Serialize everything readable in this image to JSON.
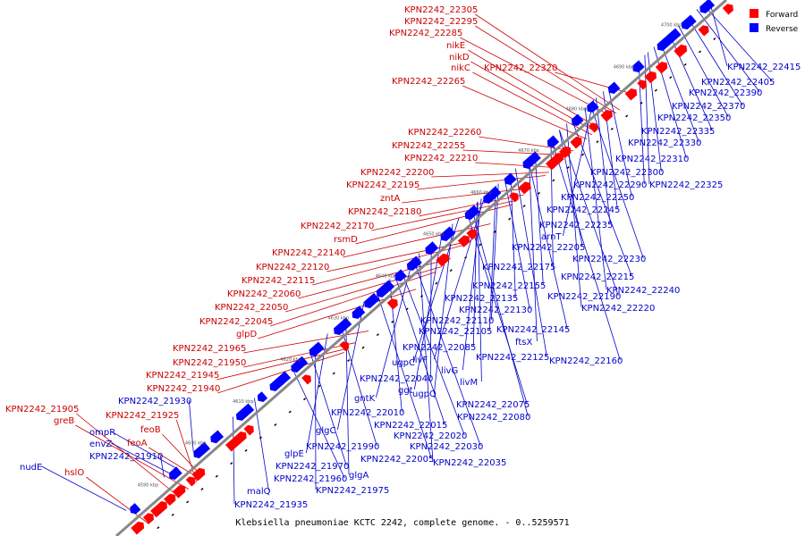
{
  "colors": {
    "forward": "#ff0000",
    "reverse": "#0000ff",
    "backbone": "#888888",
    "forward_label": "#cc0000",
    "reverse_label": "#0000cc"
  },
  "caption": "Klebsiella pneumoniae KCTC 2242, complete genome. - 0..5259571",
  "legend": {
    "forward": "Forward",
    "reverse": "Reverse"
  },
  "ticks": [
    "4590 kbp",
    "4600 kbp",
    "4610 kbp",
    "4620 kbp",
    "4630 kbp",
    "4640 kbp",
    "4650 kbp",
    "4660 kbp",
    "4670 kbp",
    "4680 kbp",
    "4690 kbp",
    "4700 kbp",
    "471"
  ],
  "forward_labels": [
    "KPN2242_22305",
    "KPN2242_22295",
    "KPN2242_22285",
    "nikE",
    "nikD",
    "nikC",
    "KPN2242_22320",
    "KPN2242_22265",
    "KPN2242_22260",
    "KPN2242_22255",
    "KPN2242_22210",
    "KPN2242_22200",
    "KPN2242_22195",
    "zntA",
    "KPN2242_22180",
    "KPN2242_22170",
    "rsmD",
    "KPN2242_22140",
    "KPN2242_22120",
    "KPN2242_22115",
    "KPN2242_22060",
    "KPN2242_22050",
    "KPN2242_22045",
    "glpD",
    "KPN2242_21965",
    "KPN2242_21950",
    "KPN2242_21945",
    "KPN2242_21940",
    "KPN2242_21905",
    "greB",
    "KPN2242_21925",
    "feoB",
    "feoA",
    "hslO"
  ],
  "reverse_labels": [
    "KPN2242_22415",
    "KPN2242_22405",
    "KPN2242_22390",
    "KPN2242_22370",
    "KPN2242_22350",
    "KPN2242_22335",
    "KPN2242_22330",
    "KPN2242_22310",
    "KPN2242_22300",
    "KPN2242_22290",
    "KPN2242_22325",
    "KPN2242_22250",
    "KPN2242_22245",
    "KPN2242_22235",
    "arnT",
    "KPN2242_22205",
    "KPN2242_22230",
    "KPN2242_22175",
    "KPN2242_22215",
    "KPN2242_22155",
    "KPN2242_22240",
    "KPN2242_22135",
    "KPN2242_22190",
    "KPN2242_22130",
    "KPN2242_22220",
    "KPN2242_22110",
    "KPN2242_22105",
    "KPN2242_22145",
    "ftsX",
    "KPN2242_22085",
    "livF",
    "KPN2242_22125",
    "KPN2242_22160",
    "ugpC",
    "livG",
    "livM",
    "KPN2242_22040",
    "ggt",
    "ugpQ",
    "gntK",
    "KPN2242_22075",
    "KPN2242_22010",
    "KPN2242_22080",
    "KPN2242_22015",
    "glgC",
    "KPN2242_22020",
    "KPN2242_21930",
    "ompR",
    "KPN2242_21990",
    "KPN2242_22030",
    "envZ",
    "KPN2242_21910",
    "glpE",
    "KPN2242_22005",
    "KPN2242_22035",
    "nudE",
    "KPN2242_21970",
    "glgA",
    "KPN2242_21960",
    "malQ",
    "KPN2242_21975",
    "KPN2242_21935"
  ]
}
